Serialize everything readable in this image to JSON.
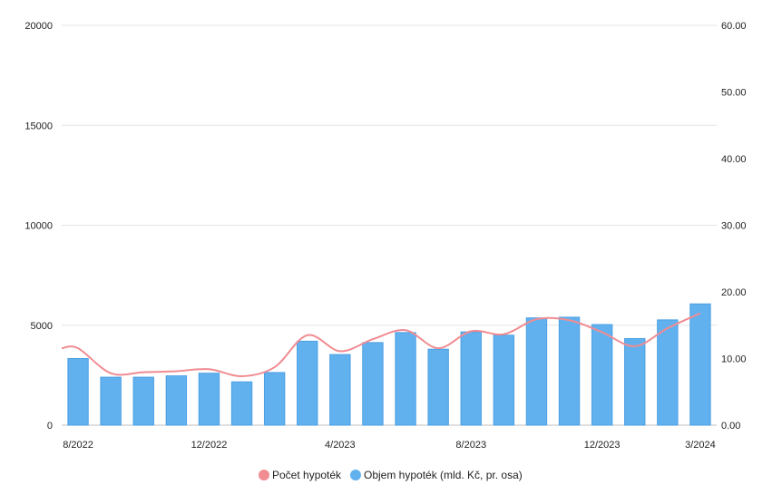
{
  "chart_data": {
    "type": "bar",
    "months": [
      "8/2022",
      "9/2022",
      "10/2022",
      "11/2022",
      "12/2022",
      "1/2023",
      "2/2023",
      "3/2023",
      "4/2023",
      "5/2023",
      "6/2023",
      "7/2023",
      "8/2023",
      "9/2023",
      "10/2023",
      "11/2023",
      "12/2023",
      "1/2024",
      "2/2024",
      "3/2024"
    ],
    "x_tick_labels": [
      {
        "index": 0,
        "label": "8/2022"
      },
      {
        "index": 4,
        "label": "12/2022"
      },
      {
        "index": 8,
        "label": "4/2023"
      },
      {
        "index": 12,
        "label": "8/2023"
      },
      {
        "index": 16,
        "label": "12/2023"
      },
      {
        "index": 19,
        "label": "3/2024"
      }
    ],
    "y_left": {
      "min": 0,
      "max": 20000,
      "ticks": [
        "0",
        "5000",
        "10000",
        "15000",
        "20000"
      ]
    },
    "y_right": {
      "min": 0,
      "max": 60,
      "ticks": [
        "0.00",
        "10.00",
        "20.00",
        "30.00",
        "40.00",
        "50.00",
        "60.00"
      ]
    },
    "series": [
      {
        "name": "Počet hypoték",
        "type": "line",
        "axis": "left",
        "color": "#f08c92",
        "values": [
          3850,
          2600,
          2650,
          2700,
          2800,
          2450,
          2900,
          4500,
          3700,
          4300,
          4750,
          3850,
          4700,
          4550,
          5300,
          5250,
          4650,
          3950,
          4850,
          5600
        ]
      },
      {
        "name": "Objem hypoték (mld. Kč, pr. osa)",
        "type": "bar",
        "axis": "right",
        "color": "#62b1ef",
        "values": [
          10.0,
          7.2,
          7.2,
          7.4,
          7.8,
          6.5,
          7.9,
          12.6,
          10.6,
          12.4,
          13.9,
          11.4,
          14.0,
          13.5,
          16.1,
          16.2,
          15.1,
          13.0,
          15.8,
          18.2
        ]
      }
    ],
    "legend_position": "bottom-center",
    "grid": true
  }
}
